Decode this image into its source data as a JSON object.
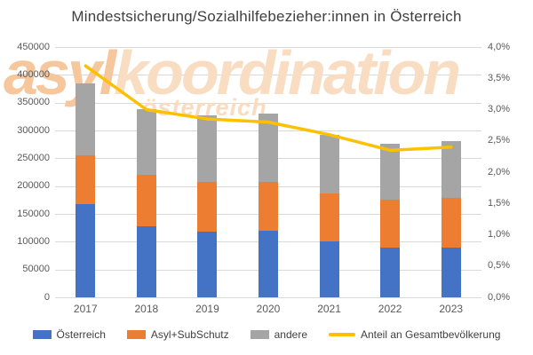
{
  "title": "Mindestsicherung/Sozialhilfebezieher:innen in Österreich",
  "watermark": {
    "accent": "asyl",
    "rest": "koordination",
    "sub": "österreich",
    "accent_color": "#f6c69c",
    "rest_color": "#f9ddc2"
  },
  "chart_data": {
    "type": "bar",
    "subtype": "stacked-bars-with-line",
    "title": "Mindestsicherung/Sozialhilfebezieher:innen in Österreich",
    "categories": [
      "2017",
      "2018",
      "2019",
      "2020",
      "2021",
      "2022",
      "2023"
    ],
    "series": [
      {
        "name": "Österreich",
        "type": "bar",
        "color": "#4472C4",
        "values": [
          167000,
          128000,
          118000,
          119000,
          101000,
          89000,
          90000
        ]
      },
      {
        "name": "Asyl+SubSchutz",
        "type": "bar",
        "color": "#ED7D31",
        "values": [
          88000,
          92000,
          90000,
          88000,
          85000,
          87000,
          89000
        ]
      },
      {
        "name": "andere",
        "type": "bar",
        "color": "#A5A5A5",
        "values": [
          130000,
          119000,
          119000,
          124000,
          106000,
          100000,
          102000
        ]
      },
      {
        "name": "Anteil an Gesamtbevölkerung",
        "type": "line",
        "axis": "right",
        "color": "#FFC000",
        "values": [
          3.7,
          3.0,
          2.85,
          2.8,
          2.6,
          2.35,
          2.4
        ]
      }
    ],
    "stacked_totals": [
      385000,
      339000,
      327000,
      331000,
      292000,
      276000,
      281000
    ],
    "left_axis": {
      "min": 0,
      "max": 450000,
      "step": 50000,
      "tick_labels": [
        "0",
        "50000",
        "100000",
        "150000",
        "200000",
        "250000",
        "300000",
        "350000",
        "400000",
        "450000"
      ]
    },
    "right_axis": {
      "min": 0,
      "max": 4.0,
      "step": 0.5,
      "tick_labels": [
        "0,0%",
        "0,5%",
        "1,0%",
        "1,5%",
        "2,0%",
        "2,5%",
        "3,0%",
        "3,5%",
        "4,0%"
      ]
    },
    "grid": true,
    "gridline_color": "#d9d9d9",
    "legend_position": "bottom",
    "text_color": "#404040",
    "axis_text_color": "#595959"
  }
}
